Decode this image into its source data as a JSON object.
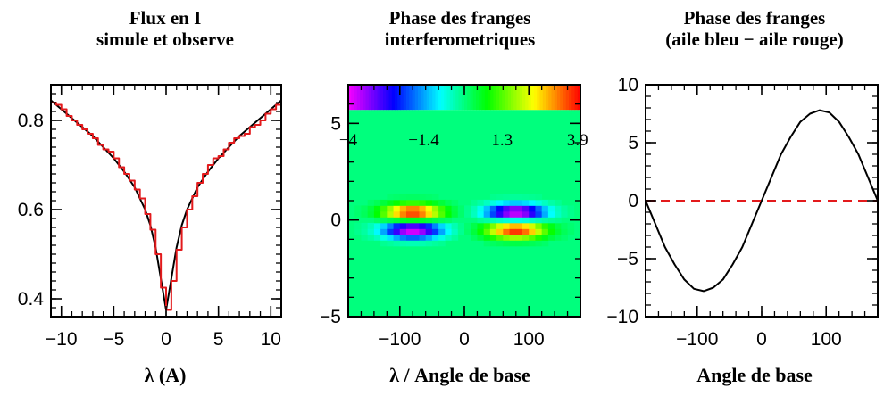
{
  "chart_data": [
    {
      "type": "line",
      "title_lines": [
        "Flux en I",
        "simule et observe"
      ],
      "xlabel": "λ (A)",
      "ylabel": "",
      "xlim": [
        -11,
        11
      ],
      "ylim": [
        0.36,
        0.88
      ],
      "xticks": [
        -10,
        -5,
        0,
        5,
        10
      ],
      "xtick_labels": [
        "−10",
        "−5",
        "0",
        "5",
        "10"
      ],
      "yticks": [
        0.4,
        0.6,
        0.8
      ],
      "ytick_labels": [
        "0.4",
        "0.6",
        "0.8"
      ],
      "series": [
        {
          "color": "#000000",
          "style": "smooth",
          "x": [
            -11,
            -10,
            -9,
            -8,
            -7,
            -6,
            -5,
            -4,
            -3,
            -2,
            -1.5,
            -1,
            -0.5,
            0,
            0.5,
            1,
            1.5,
            2,
            3,
            4,
            5,
            6,
            7,
            8,
            9,
            10,
            11
          ],
          "y": [
            0.845,
            0.825,
            0.805,
            0.785,
            0.765,
            0.74,
            0.715,
            0.685,
            0.65,
            0.6,
            0.565,
            0.515,
            0.445,
            0.375,
            0.445,
            0.515,
            0.565,
            0.6,
            0.65,
            0.685,
            0.715,
            0.74,
            0.765,
            0.785,
            0.805,
            0.825,
            0.845
          ]
        },
        {
          "color": "#e31a1c",
          "style": "step",
          "x": [
            -11,
            -10.5,
            -10,
            -9.5,
            -9,
            -8.5,
            -8,
            -7.5,
            -7,
            -6.5,
            -6,
            -5.5,
            -5,
            -4.5,
            -4,
            -3.5,
            -3,
            -2.5,
            -2,
            -1.5,
            -1,
            -0.5,
            0,
            0.5,
            1,
            1.5,
            2,
            2.5,
            3,
            3.5,
            4,
            4.5,
            5,
            5.5,
            6,
            6.5,
            7,
            7.5,
            8,
            8.5,
            9,
            9.5,
            10,
            10.5,
            11
          ],
          "y": [
            0.84,
            0.835,
            0.825,
            0.81,
            0.8,
            0.79,
            0.78,
            0.77,
            0.76,
            0.745,
            0.735,
            0.73,
            0.715,
            0.695,
            0.68,
            0.665,
            0.645,
            0.625,
            0.59,
            0.555,
            0.5,
            0.425,
            0.375,
            0.44,
            0.51,
            0.56,
            0.6,
            0.63,
            0.66,
            0.68,
            0.7,
            0.715,
            0.72,
            0.735,
            0.75,
            0.76,
            0.765,
            0.77,
            0.785,
            0.79,
            0.8,
            0.815,
            0.825,
            0.835,
            0.845
          ]
        }
      ]
    },
    {
      "type": "heatmap",
      "title_lines": [
        "Phase des franges",
        "interferometriques"
      ],
      "xlabel": "λ / Angle de base",
      "ylabel": "",
      "xlim": [
        -180,
        180
      ],
      "ylim": [
        -5,
        7
      ],
      "xticks": [
        -100,
        0,
        100
      ],
      "xtick_labels": [
        "−100",
        "0",
        "100"
      ],
      "yticks": [
        -5,
        0,
        5
      ],
      "ytick_labels": [
        "−5",
        "0",
        "5"
      ],
      "colorbar": {
        "min": -4,
        "max": 4,
        "labels": [
          "−4",
          "−1.4",
          "1.3",
          "3.9"
        ],
        "label_values": [
          -4,
          -1.4,
          1.3,
          3.9
        ],
        "y_range": [
          5.7,
          7
        ]
      },
      "background_value": 0,
      "lobes": [
        {
          "x": -80,
          "y": 0.4,
          "value": 3.9
        },
        {
          "x": -80,
          "y": -0.5,
          "value": -4
        },
        {
          "x": 80,
          "y": 0.4,
          "value": -4
        },
        {
          "x": 80,
          "y": -0.5,
          "value": 3.9
        }
      ]
    },
    {
      "type": "line",
      "title_lines": [
        "Phase des franges",
        "(aile bleu − aile rouge)"
      ],
      "xlabel": "Angle de base",
      "ylabel": "",
      "xlim": [
        -180,
        180
      ],
      "ylim": [
        -10,
        10
      ],
      "xticks": [
        -100,
        0,
        100
      ],
      "xtick_labels": [
        "−100",
        "0",
        "100"
      ],
      "yticks": [
        -10,
        -5,
        0,
        5,
        10
      ],
      "ytick_labels": [
        "−10",
        "−5",
        "0",
        "5",
        "10"
      ],
      "series": [
        {
          "color": "#000000",
          "style": "solid",
          "x": [
            -180,
            -165,
            -150,
            -135,
            -120,
            -105,
            -90,
            -75,
            -60,
            -45,
            -30,
            -15,
            0,
            15,
            30,
            45,
            60,
            75,
            90,
            105,
            120,
            135,
            150,
            165,
            180
          ],
          "y": [
            0,
            -2.0,
            -4.0,
            -5.5,
            -6.8,
            -7.6,
            -7.8,
            -7.5,
            -6.8,
            -5.5,
            -4.0,
            -2.0,
            0,
            2.0,
            4.0,
            5.5,
            6.8,
            7.5,
            7.8,
            7.6,
            6.8,
            5.5,
            4.0,
            2.0,
            0
          ]
        },
        {
          "color": "#e31a1c",
          "style": "dashed",
          "x": [
            -180,
            180
          ],
          "y": [
            0,
            0
          ]
        }
      ]
    }
  ]
}
